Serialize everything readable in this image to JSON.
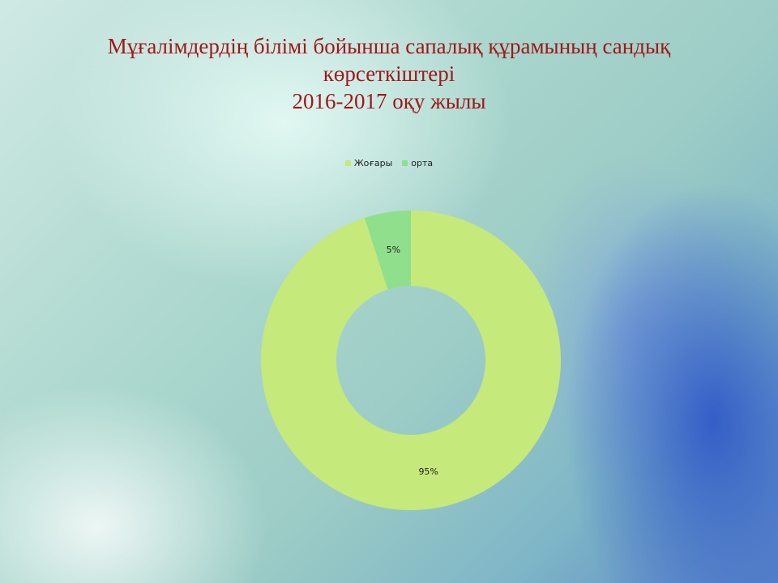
{
  "title_lines": [
    "Мұғалімдердің білімі бойынша сапалық құрамының сандық",
    "көрсеткіштері",
    "2016-2017 оқу жылы"
  ],
  "chart_data": {
    "type": "pie",
    "donut": true,
    "title": "Мұғалімдердің білімі бойынша сапалық құрамының сандық көрсеткіштері 2016-2017 оқу жылы",
    "categories": [
      "Жоғары",
      "орта"
    ],
    "values": [
      95,
      5
    ],
    "data_labels": [
      "95%",
      "5%"
    ],
    "colors": [
      "#c5e97a",
      "#8fdf8c"
    ],
    "legend": "top"
  }
}
